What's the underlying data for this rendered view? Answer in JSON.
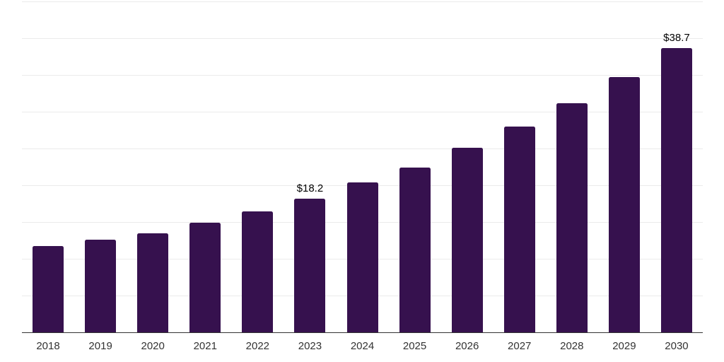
{
  "chart_data": {
    "type": "bar",
    "title": "",
    "xlabel": "",
    "ylabel": "",
    "categories": [
      "2018",
      "2019",
      "2020",
      "2021",
      "2022",
      "2023",
      "2024",
      "2025",
      "2026",
      "2027",
      "2028",
      "2029",
      "2030"
    ],
    "values": [
      11.7,
      12.6,
      13.5,
      14.9,
      16.4,
      18.2,
      20.4,
      22.4,
      25.1,
      28.0,
      31.2,
      34.7,
      38.7
    ],
    "bar_labels": [
      "",
      "",
      "",
      "",
      "",
      "$18.2",
      "",
      "",
      "",
      "",
      "",
      "",
      "$38.7"
    ],
    "ylim": [
      0,
      45
    ],
    "grid_step": 5,
    "grid": true,
    "legend": false,
    "y_tick_labels_visible": false,
    "colors": {
      "bar": "#36114E",
      "grid": "#EBEBEB",
      "axis": "#333333",
      "tick_label": "#333333",
      "value_label": "#000000",
      "background": "#FFFFFF"
    }
  }
}
